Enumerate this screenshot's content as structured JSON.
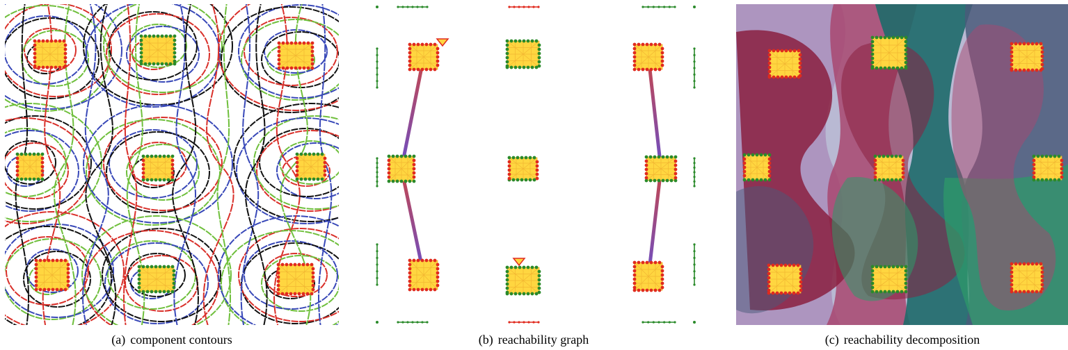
{
  "figure": {
    "panels": [
      {
        "id": "a",
        "tag": "(a)",
        "caption": "component contours"
      },
      {
        "id": "b",
        "tag": "(b)",
        "caption": "reachability graph"
      },
      {
        "id": "c",
        "tag": "(c)",
        "caption": "reachability decomposition"
      }
    ]
  },
  "colors": {
    "component_fill": "#ffd640",
    "component_hatch": "#f2b632",
    "boundary_red": "#e02a1e",
    "boundary_green": "#2a8a2a",
    "contour_black": "#111111",
    "contour_red": "#d9302a",
    "contour_green": "#6fbf3c",
    "contour_blue": "#3848b8",
    "edge_start": "#c8464a",
    "edge_end": "#6a4fc8",
    "region_wine": "#8a2040",
    "region_mauve": "#a84870",
    "region_teal": "#1e6a6a",
    "region_slate": "#4a5a7a",
    "region_green": "#2e9a6a",
    "region_lilac": "#a98ab8"
  }
}
